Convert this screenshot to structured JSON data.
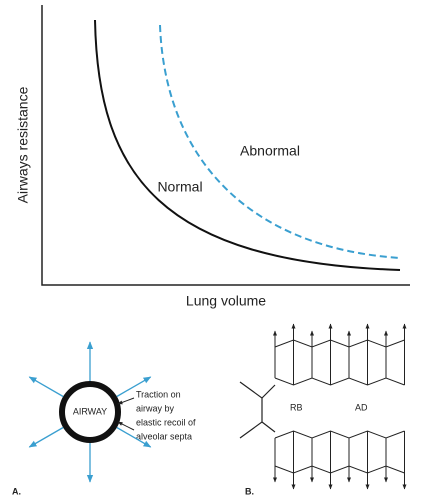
{
  "figure": {
    "graph": {
      "y_axis_label": "Airways resistance",
      "x_axis_label": "Lung volume",
      "curves": [
        "Normal",
        "Abnormal"
      ]
    },
    "panel_a": {
      "label": "A.",
      "airway": "AIRWAY",
      "annotation": [
        "Traction on",
        "airway by",
        "elastic recoil of",
        "alveolar septa"
      ]
    },
    "panel_b": {
      "label": "B.",
      "regions": [
        "RB",
        "AD"
      ]
    }
  }
}
